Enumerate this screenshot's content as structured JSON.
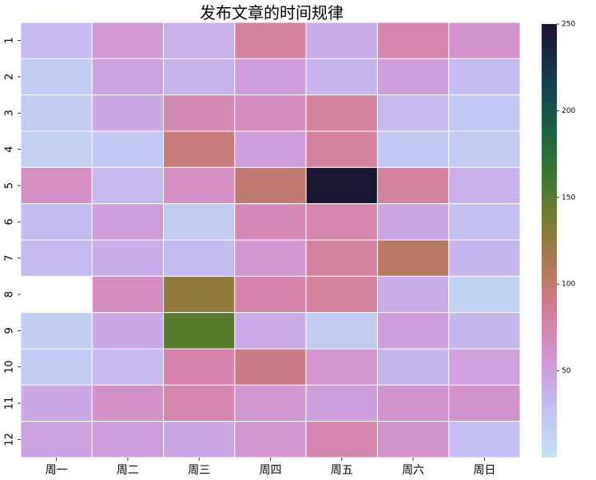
{
  "chart_data": {
    "type": "heatmap",
    "title": "发布文章的时间规律",
    "x_categories": [
      "周一",
      "周二",
      "周三",
      "周四",
      "周五",
      "周六",
      "周日"
    ],
    "y_categories": [
      "1",
      "2",
      "3",
      "4",
      "5",
      "6",
      "7",
      "8",
      "9",
      "10",
      "11",
      "12"
    ],
    "values": [
      [
        32,
        55,
        38,
        80,
        40,
        75,
        60
      ],
      [
        18,
        48,
        36,
        52,
        36,
        52,
        30
      ],
      [
        20,
        44,
        72,
        66,
        80,
        32,
        22
      ],
      [
        15,
        22,
        95,
        52,
        80,
        22,
        20
      ],
      [
        64,
        32,
        64,
        100,
        250,
        80,
        38
      ],
      [
        30,
        52,
        20,
        70,
        74,
        45,
        28
      ],
      [
        32,
        40,
        30,
        56,
        80,
        105,
        34
      ],
      [
        null,
        66,
        125,
        76,
        80,
        40,
        14
      ],
      [
        18,
        44,
        150,
        42,
        20,
        52,
        34
      ],
      [
        20,
        32,
        76,
        90,
        58,
        34,
        50
      ],
      [
        44,
        62,
        74,
        56,
        52,
        60,
        60
      ],
      [
        48,
        52,
        44,
        56,
        74,
        60,
        28
      ]
    ],
    "colorbar": {
      "min": 0,
      "max": 250,
      "ticks": [
        50,
        100,
        150,
        200,
        250
      ]
    },
    "colormap": "cubehelix_r",
    "grid_lines": "white"
  }
}
